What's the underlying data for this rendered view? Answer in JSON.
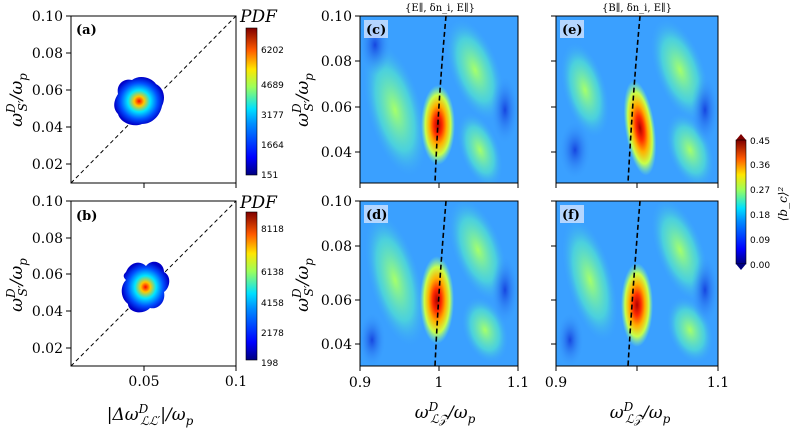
{
  "colors": {
    "colormap": [
      "#00007f",
      "#0000ff",
      "#0080ff",
      "#00e0ff",
      "#7cff7a",
      "#ffe600",
      "#ff7a00",
      "#ff1a00",
      "#7f0000"
    ],
    "background_field": "#3aa0ff",
    "diagonal_line": "#000000"
  },
  "chart_data": [
    {
      "panel": "(a)",
      "type": "heatmap",
      "xlim": [
        0.01,
        0.1
      ],
      "ylim": [
        0.01,
        0.1
      ],
      "xticks": [
        0.05,
        0.1
      ],
      "yticks": [
        0.02,
        0.04,
        0.06,
        0.08,
        0.1
      ],
      "xtick_labels": [
        "",
        ""
      ],
      "ytick_labels": [
        "0.02",
        "0.04",
        "0.06",
        "0.08",
        "0.10"
      ],
      "ylabel": "ω^D_S'/ω_p",
      "reference_line": "y = x (dashed)",
      "blob_center": [
        0.049,
        0.049
      ],
      "colorbar": {
        "title": "PDF",
        "ticks": [
          "6202",
          "4689",
          "3177",
          "1664",
          "151"
        ]
      }
    },
    {
      "panel": "(b)",
      "type": "heatmap",
      "xlim": [
        0.01,
        0.1
      ],
      "ylim": [
        0.01,
        0.1
      ],
      "xticks": [
        0.05,
        0.1
      ],
      "yticks": [
        0.02,
        0.04,
        0.06,
        0.08,
        0.1
      ],
      "xtick_labels": [
        "0.05",
        "0.1"
      ],
      "ytick_labels": [
        "0.02",
        "0.04",
        "0.06",
        "0.08",
        "0.10"
      ],
      "ylabel": "ω^D_S'/ω_p",
      "xlabel": "|Δω^D_LL'|/ω_p",
      "reference_line": "y = x (dashed)",
      "blob_center": [
        0.048,
        0.049
      ],
      "colorbar": {
        "title": "PDF",
        "ticks": [
          "8118",
          "6138",
          "4158",
          "2178",
          "198"
        ]
      }
    },
    {
      "panel": "(c)",
      "type": "heatmap",
      "title": "{E∥, δn_i, E∥}",
      "xlim": [
        0.9,
        1.1
      ],
      "ylim": [
        0.025,
        0.1
      ],
      "xticks": [
        0.9,
        1.0,
        1.1
      ],
      "yticks": [
        0.04,
        0.06,
        0.08,
        0.1
      ],
      "ylabel": "ω^D_S'/ω_p",
      "peak": [
        0.99,
        0.057
      ]
    },
    {
      "panel": "(e)",
      "type": "heatmap",
      "title": "{B∥, δn_i, E∥}",
      "xlim": [
        0.9,
        1.1
      ],
      "ylim": [
        0.025,
        0.1
      ],
      "xticks": [
        0.9,
        1.0,
        1.1
      ],
      "yticks": [
        0.04,
        0.06,
        0.08,
        0.1
      ],
      "peak": [
        0.998,
        0.052
      ]
    },
    {
      "panel": "(d)",
      "type": "heatmap",
      "xlim": [
        0.9,
        1.1
      ],
      "ylim": [
        0.025,
        0.1
      ],
      "xticks": [
        0.9,
        1.0,
        1.1
      ],
      "yticks": [
        0.04,
        0.06,
        0.08,
        0.1
      ],
      "ylabel": "ω^D_S'/ω_p",
      "xlabel": "ω^D_LZ/ω_p",
      "peak": [
        0.993,
        0.058
      ]
    },
    {
      "panel": "(f)",
      "type": "heatmap",
      "xlim": [
        0.9,
        1.1
      ],
      "ylim": [
        0.025,
        0.1
      ],
      "xticks": [
        0.9,
        1.0,
        1.1
      ],
      "yticks": [
        0.04,
        0.06,
        0.08,
        0.1
      ],
      "xlabel": "ω^D_LZ/ω_p",
      "peak": [
        0.998,
        0.056
      ]
    }
  ],
  "shared_colorbar": {
    "label": "⟨b_c⟩²",
    "ticks": [
      "0.45",
      "0.36",
      "0.27",
      "0.18",
      "0.09",
      "0.00"
    ]
  },
  "text": {
    "a": "(a)",
    "b": "(b)",
    "c": "(c)",
    "d": "(d)",
    "e": "(e)",
    "f": "(f)",
    "pdf": "PDF",
    "title_c": "{E∥, δn_i, E∥}",
    "title_e": "{B∥, δn_i, E∥}",
    "ytick_010": "0.10",
    "ytick_008": "0.08",
    "ytick_006": "0.06",
    "ytick_004": "0.04",
    "ytick_002": "0.02",
    "xtick_005": "0.05",
    "xtick_01": "0.1",
    "xtick_09": "0.9",
    "xtick_1": "1",
    "xtick_11": "1.1"
  }
}
